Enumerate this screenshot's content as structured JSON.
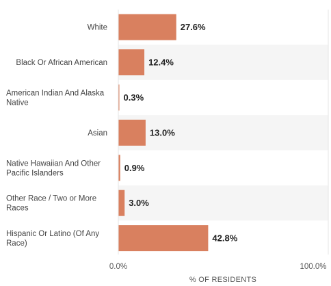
{
  "chart_data": {
    "type": "bar",
    "orientation": "horizontal",
    "categories": [
      "White",
      "Black Or African American",
      "American Indian And Alaska Native",
      "Asian",
      "Native Hawaiian And Other Pacific Islanders",
      "Other Race / Two or More Races",
      "Hispanic Or Latino (Of Any Race)"
    ],
    "values": [
      27.6,
      12.4,
      0.3,
      13.0,
      0.9,
      3.0,
      42.8
    ],
    "value_labels": [
      "27.6%",
      "12.4%",
      "0.3%",
      "13.0%",
      "0.9%",
      "3.0%",
      "42.8%"
    ],
    "xlim": [
      0,
      100
    ],
    "x_ticks": [
      "0.0%",
      "100.0%"
    ],
    "xlabel": "% OF RESIDENTS",
    "ylabel": "",
    "title": "",
    "grid": false,
    "alternating_row_bands": true,
    "colors": {
      "bar": "#d9805f",
      "band": "#f5f5f5"
    }
  }
}
